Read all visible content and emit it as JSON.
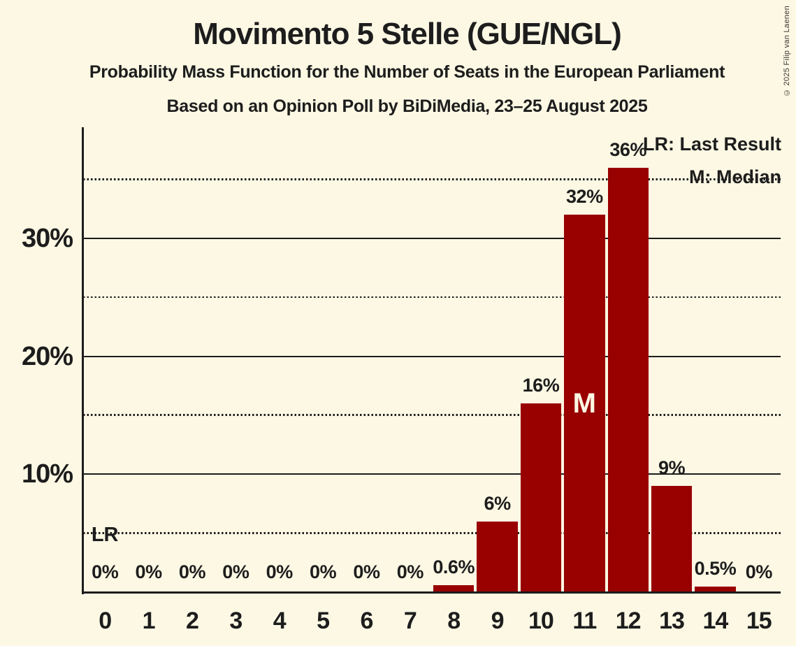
{
  "copyright": "© 2025 Filip van Laenen",
  "colors": {
    "background": "#FCF8E4",
    "bar": "#990000",
    "text": "#1D1D1D",
    "median_label_text": "#FCF8E4"
  },
  "chart_data": {
    "type": "bar",
    "title": "Movimento 5 Stelle (GUE/NGL)",
    "subtitle": "Probability Mass Function for the Number of Seats in the European Parliament",
    "source_line": "Based on an Opinion Poll by BiDiMedia, 23–25 August 2025",
    "xlabel": "",
    "ylabel": "",
    "categories": [
      0,
      1,
      2,
      3,
      4,
      5,
      6,
      7,
      8,
      9,
      10,
      11,
      12,
      13,
      14,
      15
    ],
    "values": [
      0,
      0,
      0,
      0,
      0,
      0,
      0,
      0,
      0.6,
      6,
      16,
      32,
      36,
      9,
      0.5,
      0
    ],
    "bar_labels": [
      "0%",
      "0%",
      "0%",
      "0%",
      "0%",
      "0%",
      "0%",
      "0%",
      "0.6%",
      "6%",
      "16%",
      "32%",
      "36%",
      "9%",
      "0.5%",
      "0%"
    ],
    "ylim": [
      0,
      39.4
    ],
    "yticks": [
      {
        "value": 10,
        "label": "10%"
      },
      {
        "value": 20,
        "label": "20%"
      },
      {
        "value": 30,
        "label": "30%"
      }
    ],
    "solid_gridlines": [
      10,
      20,
      30
    ],
    "dotted_gridlines": [
      5,
      15,
      25,
      35
    ],
    "grid": "horizontal",
    "legend_position": "top-right",
    "legend": [
      {
        "key": "LR",
        "label": "LR: Last Result"
      },
      {
        "key": "M",
        "label": "M: Median"
      }
    ],
    "last_result_seat": 0,
    "median_seat": 11,
    "annotations": {
      "last_result": "LR",
      "median": "M"
    }
  }
}
